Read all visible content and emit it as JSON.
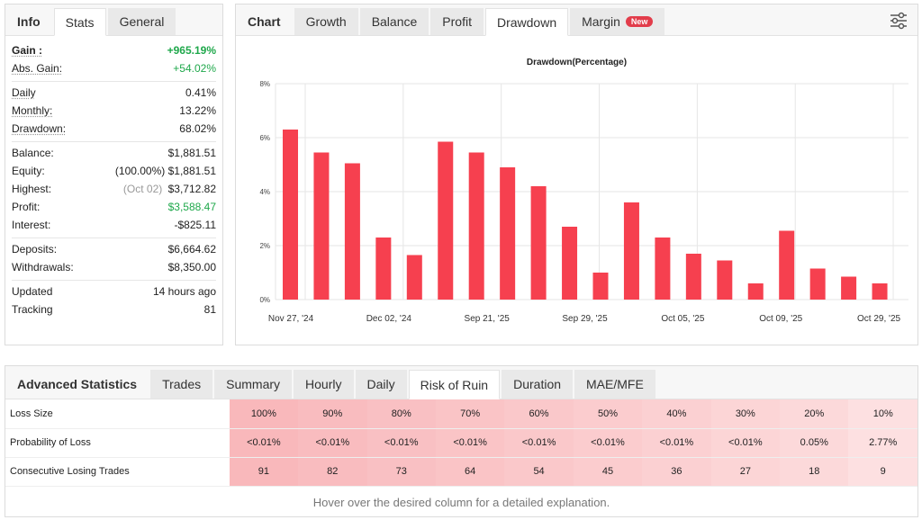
{
  "stats_panel": {
    "tabs": [
      "Info",
      "Stats",
      "General"
    ],
    "active_tab": "Stats",
    "groups": [
      [
        {
          "label": "Gain :",
          "value": "+965.19%",
          "style": "greenb",
          "lstyle": "bold ul"
        },
        {
          "label": "Abs. Gain:",
          "value": "+54.02%",
          "style": "green",
          "lstyle": "ul"
        }
      ],
      [
        {
          "label": "Daily",
          "value": "0.41%",
          "lstyle": "ul"
        },
        {
          "label": "Monthly:",
          "value": "13.22%",
          "lstyle": "ul"
        },
        {
          "label": "Drawdown:",
          "value": "68.02%",
          "lstyle": "ul"
        }
      ],
      [
        {
          "label": "Balance:",
          "value": "$1,881.51"
        },
        {
          "label": "Equity:",
          "value": "$1,881.51",
          "prefix": "(100.00%)"
        },
        {
          "label": "Highest:",
          "value": "$3,712.82",
          "prefix": "(Oct 02)",
          "prefix_muted": true
        },
        {
          "label": "Profit:",
          "value": "$3,588.47",
          "style": "green"
        },
        {
          "label": "Interest:",
          "value": "-$825.11"
        }
      ],
      [
        {
          "label": "Deposits:",
          "value": "$6,664.62"
        },
        {
          "label": "Withdrawals:",
          "value": "$8,350.00"
        }
      ],
      [
        {
          "label": "Updated",
          "value": "14 hours ago"
        },
        {
          "label": "Tracking",
          "value": "81"
        }
      ]
    ]
  },
  "chart_panel": {
    "tabs": [
      "Chart",
      "Growth",
      "Balance",
      "Profit",
      "Drawdown",
      "Margin"
    ],
    "active_tab": "Drawdown",
    "new_badge": "New",
    "settings_icon": "sliders-icon"
  },
  "chart_data": {
    "type": "bar",
    "title": "Drawdown(Percentage)",
    "ylim": [
      0,
      8
    ],
    "yticks": [
      "0%",
      "2%",
      "4%",
      "6%",
      "8%"
    ],
    "ytick_values": [
      0,
      2,
      4,
      6,
      8
    ],
    "xtick_labels": [
      "Nov 27, '24",
      "Dec 02, '24",
      "Sep 21, '25",
      "Sep 29, '25",
      "Oct 05, '25",
      "Oct 09, '25",
      "Oct 29, '25"
    ],
    "values": [
      6.3,
      5.45,
      5.05,
      2.3,
      1.65,
      5.85,
      5.45,
      4.9,
      4.2,
      2.7,
      1.0,
      3.6,
      2.3,
      1.7,
      1.45,
      0.6,
      2.55,
      1.15,
      0.85,
      0.6
    ],
    "color": "#f6404f",
    "grid": true
  },
  "advanced": {
    "title": "Advanced Statistics",
    "tabs": [
      "Trades",
      "Summary",
      "Hourly",
      "Daily",
      "Risk of Ruin",
      "Duration",
      "MAE/MFE"
    ],
    "active_tab": "Risk of Ruin",
    "rows": [
      {
        "label": "Loss Size",
        "cells": [
          "100%",
          "90%",
          "80%",
          "70%",
          "60%",
          "50%",
          "40%",
          "30%",
          "20%",
          "10%"
        ]
      },
      {
        "label": "Probability of Loss",
        "cells": [
          "<0.01%",
          "<0.01%",
          "<0.01%",
          "<0.01%",
          "<0.01%",
          "<0.01%",
          "<0.01%",
          "<0.01%",
          "0.05%",
          "2.77%"
        ]
      },
      {
        "label": "Consecutive Losing Trades",
        "cells": [
          "91",
          "82",
          "73",
          "64",
          "54",
          "45",
          "36",
          "27",
          "18",
          "9"
        ]
      }
    ],
    "hint": "Hover over the desired column for a detailed explanation."
  }
}
